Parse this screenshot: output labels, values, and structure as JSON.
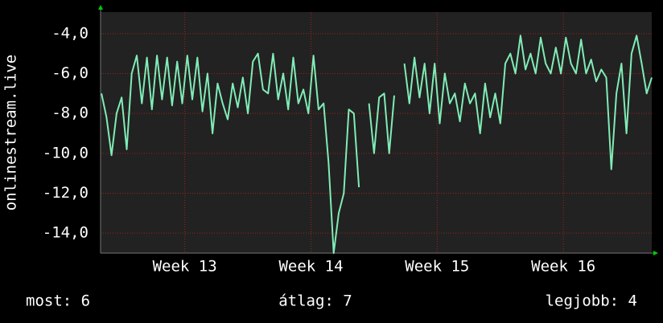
{
  "chart_data": {
    "type": "line",
    "ylabel": "onlinestream.live",
    "x": [
      12.34,
      12.38,
      12.42,
      12.46,
      12.5,
      12.54,
      12.58,
      12.62,
      12.66,
      12.7,
      12.74,
      12.78,
      12.82,
      12.86,
      12.9,
      12.94,
      12.98,
      13.02,
      13.06,
      13.1,
      13.14,
      13.18,
      13.22,
      13.26,
      13.3,
      13.34,
      13.38,
      13.42,
      13.46,
      13.5,
      13.54,
      13.58,
      13.62,
      13.66,
      13.7,
      13.74,
      13.78,
      13.82,
      13.86,
      13.9,
      13.94,
      13.98,
      14.02,
      14.06,
      14.1,
      14.14,
      14.18,
      14.22,
      14.26,
      14.3,
      14.34,
      14.38,
      14.42,
      14.46,
      14.5,
      14.54,
      14.58,
      14.62,
      14.66,
      14.7,
      14.74,
      14.78,
      14.82,
      14.86,
      14.9,
      14.94,
      14.98,
      15.02,
      15.06,
      15.1,
      15.14,
      15.18,
      15.22,
      15.26,
      15.3,
      15.34,
      15.38,
      15.42,
      15.46,
      15.5,
      15.54,
      15.58,
      15.62,
      15.66,
      15.7,
      15.74,
      15.78,
      15.82,
      15.86,
      15.9,
      15.94,
      15.98,
      16.02,
      16.06,
      16.1,
      16.14,
      16.18,
      16.22,
      16.26,
      16.3,
      16.34,
      16.38,
      16.42,
      16.46,
      16.5,
      16.54,
      16.58,
      16.62,
      16.66,
      16.7
    ],
    "series": [
      {
        "color": "#80ecb6",
        "values": [
          -7,
          -8.2,
          -10.1,
          -8,
          -7.2,
          -9.8,
          -6,
          -5.1,
          -7.5,
          -5.2,
          -7.8,
          -5.1,
          -7.3,
          -5.2,
          -7.6,
          -5.4,
          -7.5,
          -5.1,
          -7.3,
          -5.2,
          -7.9,
          -6,
          -9,
          -6.5,
          -7.5,
          -8.3,
          -6.5,
          -7.7,
          -6.2,
          -8,
          -5.4,
          -5,
          -6.8,
          -7,
          -5,
          -7.3,
          -6,
          -7.8,
          -5.2,
          -7.5,
          -6.8,
          -8,
          -5.1,
          -7.8,
          -7.5,
          -10.5,
          -15,
          -13,
          -12,
          -7.8,
          -8,
          -11.7,
          null,
          -7.5,
          -10,
          -7.2,
          -7,
          -10,
          -7.1,
          null,
          -5.5,
          -7.5,
          -5.2,
          -7.2,
          -5.5,
          -8,
          -5.5,
          -8.5,
          -6,
          -7.5,
          -7,
          -8.4,
          -6.5,
          -7.5,
          -7,
          -9,
          -6.5,
          -8.2,
          -7,
          -8.5,
          -5.5,
          -5,
          -6,
          -4.1,
          -5.8,
          -5,
          -6,
          -4.2,
          -5.5,
          -6,
          -4.7,
          -6,
          -4.2,
          -5.5,
          -6,
          -4.3,
          -6,
          -5.3,
          -6.4,
          -5.8,
          -6.2,
          -10.8,
          -7,
          -5.5,
          -9,
          -5,
          -4.1,
          -5.5,
          -7,
          -6.2
        ]
      }
    ],
    "xlim": [
      12.333,
      16.7
    ],
    "xticks": [
      {
        "value": 13,
        "label": "Week 13"
      },
      {
        "value": 14,
        "label": "Week 14"
      },
      {
        "value": 15,
        "label": "Week 15"
      },
      {
        "value": 16,
        "label": "Week 16"
      }
    ],
    "ylim": [
      -15,
      -2.92
    ],
    "yticks": [
      {
        "value": -4,
        "label": "-4,0"
      },
      {
        "value": -6,
        "label": "-6,0"
      },
      {
        "value": -8,
        "label": "-8,0"
      },
      {
        "value": -10,
        "label": "-10,0"
      },
      {
        "value": -12,
        "label": "-12,0"
      },
      {
        "value": -14,
        "label": "-14,0"
      }
    ],
    "grid": true,
    "footer": [
      "most: 6",
      "átlag: 7",
      "legjobb: 4"
    ]
  }
}
